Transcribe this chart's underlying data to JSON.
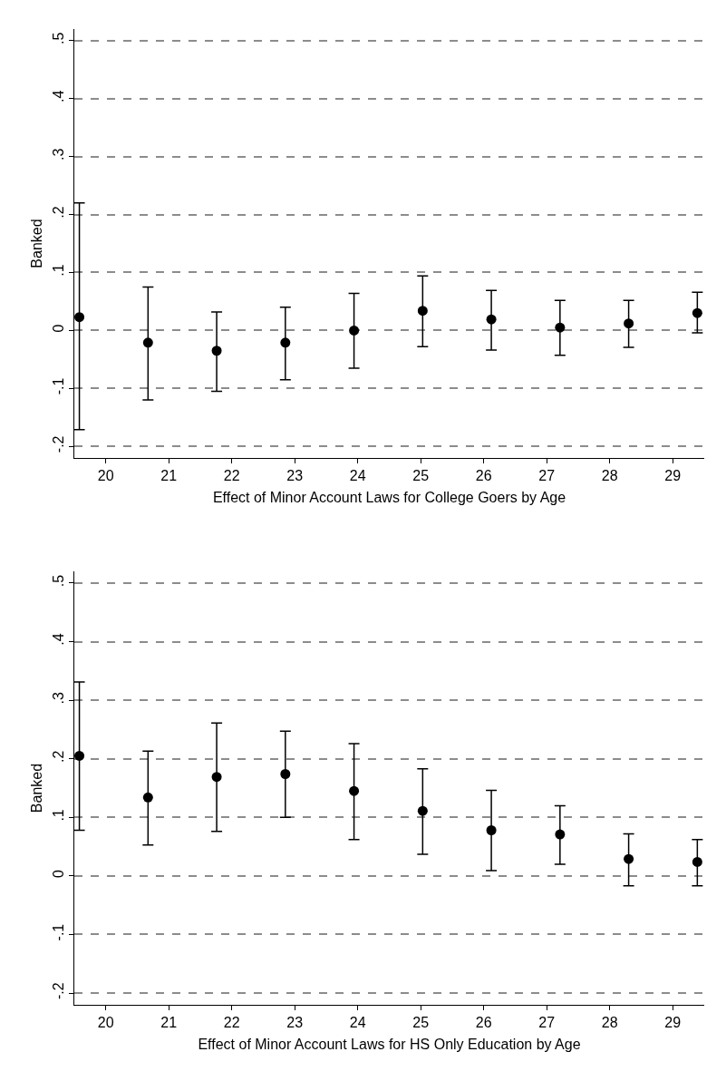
{
  "chart_data": [
    {
      "type": "scatter",
      "xlabel": "Effect of Minor Account Laws for College Goers by Age",
      "ylabel": "Banked",
      "x": [
        19.58,
        20.67,
        21.76,
        22.85,
        23.94,
        25.03,
        26.12,
        27.21,
        28.3,
        29.39
      ],
      "series": [
        {
          "color": "#000000",
          "values": [
            0.023,
            -0.021,
            -0.035,
            -0.021,
            0.0,
            0.034,
            0.019,
            0.005,
            0.012,
            0.03
          ],
          "errors": [
            [
              -0.171,
              0.22
            ],
            [
              -0.12,
              0.075
            ],
            [
              -0.105,
              0.032
            ],
            [
              -0.085,
              0.04
            ],
            [
              -0.065,
              0.064
            ],
            [
              -0.028,
              0.094
            ],
            [
              -0.034,
              0.069
            ],
            [
              -0.043,
              0.052
            ],
            [
              -0.029,
              0.052
            ],
            [
              -0.004,
              0.066
            ]
          ]
        }
      ],
      "xlim": [
        19.5,
        29.5
      ],
      "xticks": [
        20,
        21,
        22,
        23,
        24,
        25,
        26,
        27,
        28,
        29
      ],
      "ylim": [
        -0.22,
        0.52
      ],
      "yticks": [
        {
          "value": -0.2,
          "label": "-.2"
        },
        {
          "value": -0.1,
          "label": "-.1"
        },
        0,
        {
          "value": 0.1,
          "label": ".1"
        },
        {
          "value": 0.2,
          "label": ".2"
        },
        {
          "value": 0.3,
          "label": ".3"
        },
        {
          "value": 0.4,
          "label": ".4"
        },
        {
          "value": 0.5,
          "label": ".5"
        }
      ],
      "grid": "y",
      "marker": "circle"
    },
    {
      "type": "scatter",
      "xlabel": "Effect of Minor Account Laws for HS Only Education by Age",
      "ylabel": "Banked",
      "x": [
        19.58,
        20.67,
        21.76,
        22.85,
        23.94,
        25.03,
        26.12,
        27.21,
        28.3,
        29.39
      ],
      "series": [
        {
          "color": "#000000",
          "values": [
            0.205,
            0.134,
            0.169,
            0.174,
            0.145,
            0.111,
            0.078,
            0.071,
            0.029,
            0.024
          ],
          "errors": [
            [
              0.078,
              0.331
            ],
            [
              0.053,
              0.213
            ],
            [
              0.076,
              0.261
            ],
            [
              0.1,
              0.247
            ],
            [
              0.062,
              0.226
            ],
            [
              0.037,
              0.183
            ],
            [
              0.009,
              0.146
            ],
            [
              0.02,
              0.12
            ],
            [
              -0.017,
              0.072
            ],
            [
              -0.017,
              0.062
            ]
          ]
        }
      ],
      "xlim": [
        19.5,
        29.5
      ],
      "xticks": [
        20,
        21,
        22,
        23,
        24,
        25,
        26,
        27,
        28,
        29
      ],
      "ylim": [
        -0.22,
        0.52
      ],
      "yticks": [
        {
          "value": -0.2,
          "label": "-.2"
        },
        {
          "value": -0.1,
          "label": "-.1"
        },
        0,
        {
          "value": 0.1,
          "label": ".1"
        },
        {
          "value": 0.2,
          "label": ".2"
        },
        {
          "value": 0.3,
          "label": ".3"
        },
        {
          "value": 0.4,
          "label": ".4"
        },
        {
          "value": 0.5,
          "label": ".5"
        }
      ],
      "grid": "y",
      "marker": "circle"
    }
  ]
}
